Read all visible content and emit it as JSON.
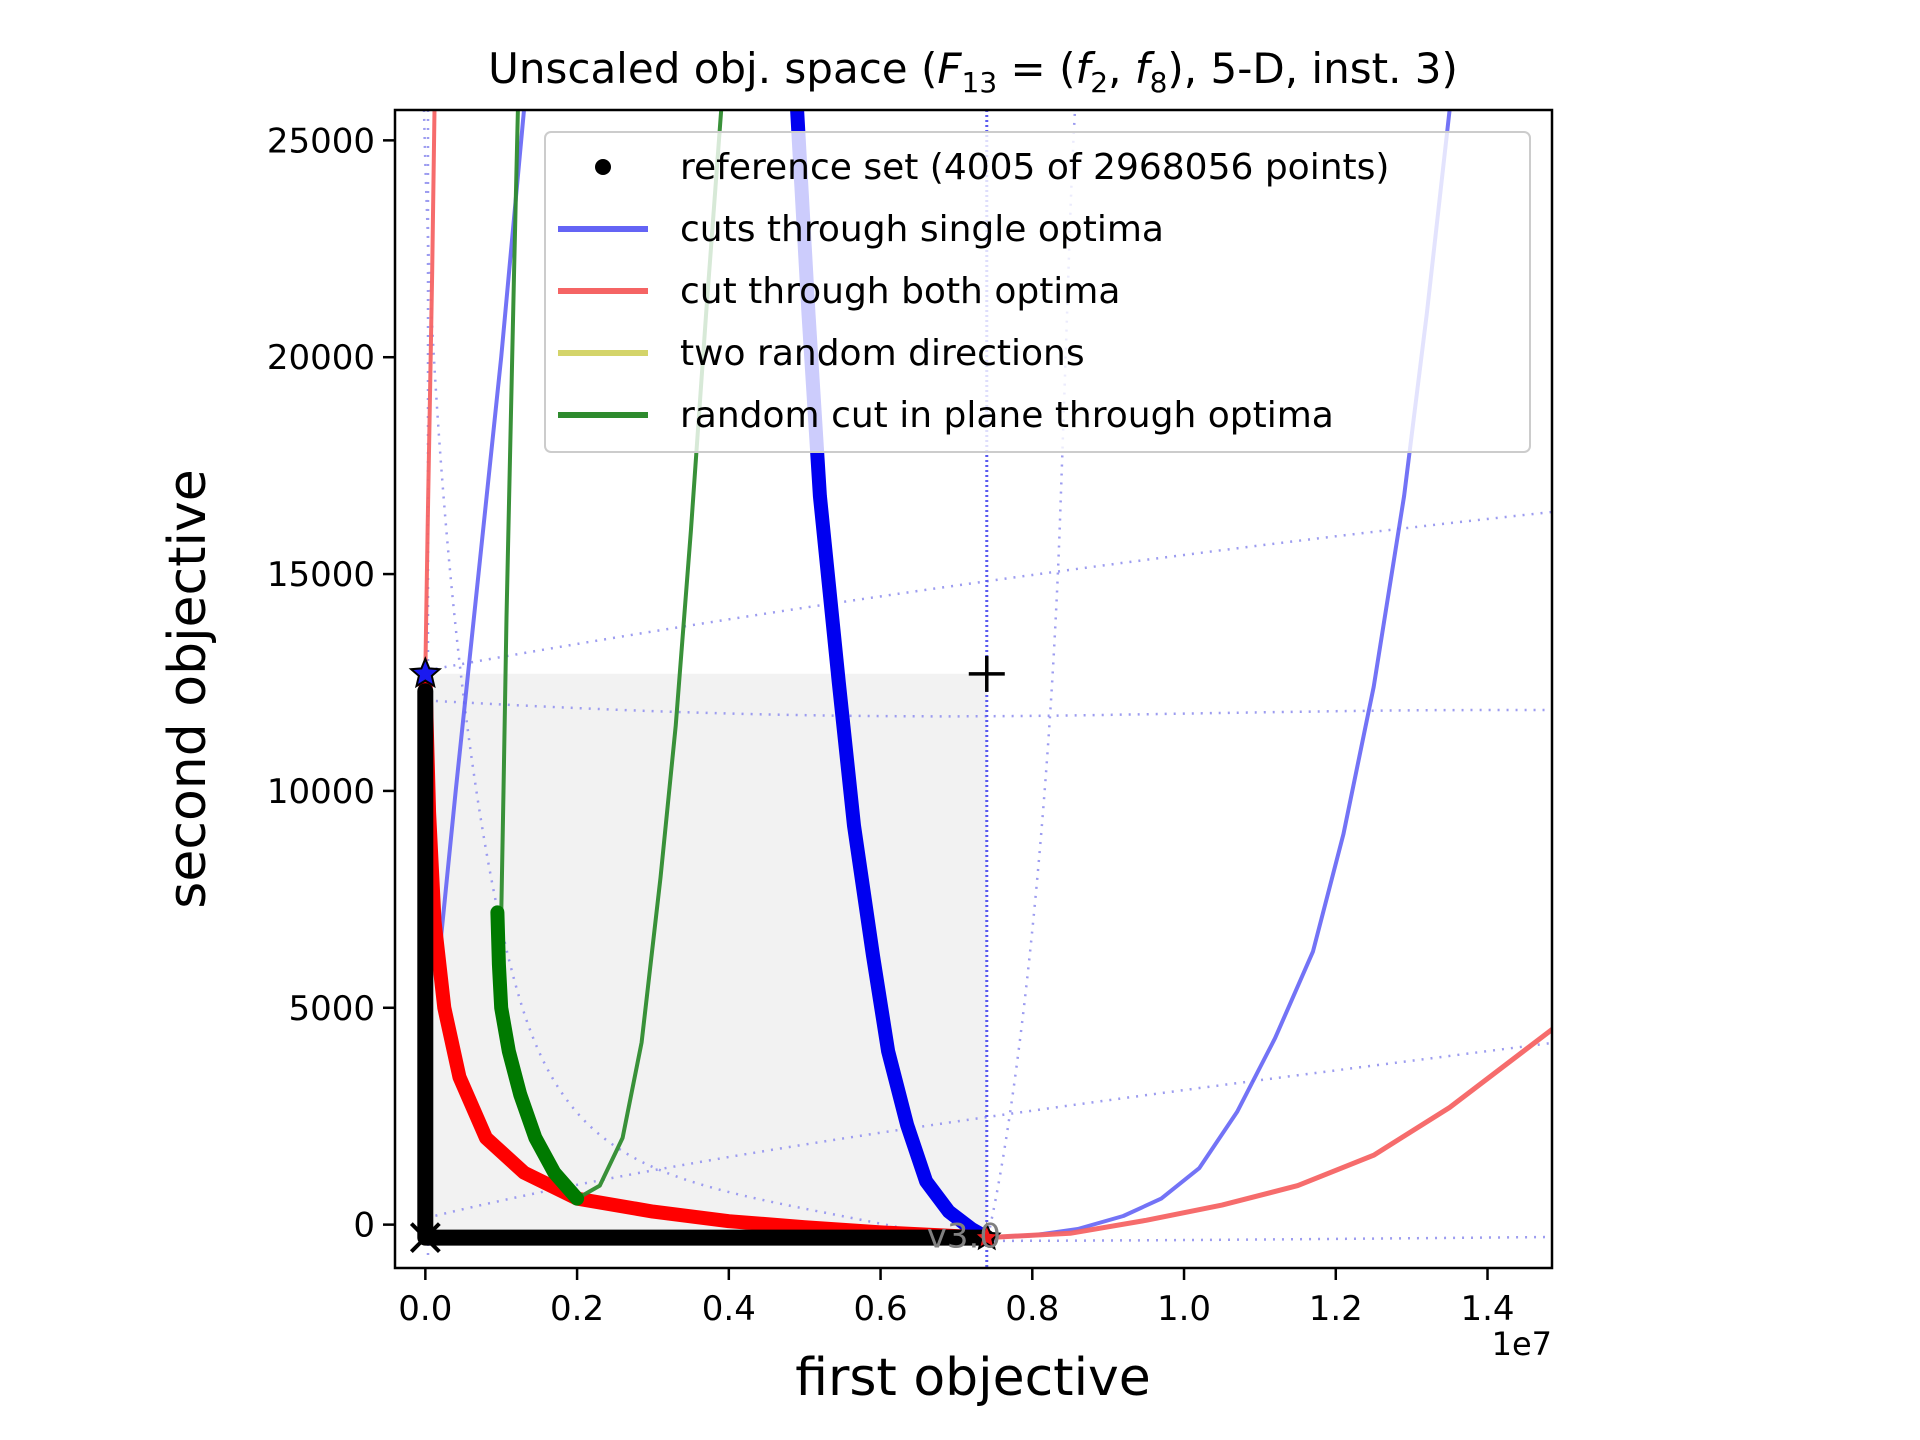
{
  "chart_data": {
    "type": "line",
    "title_pre": "Unscaled obj. space (",
    "title_func": "F",
    "title_func_sub": "13",
    "title_eq": " = (",
    "title_f2": "f",
    "title_f2_sub": "2",
    "title_comma": ", ",
    "title_f8": "f",
    "title_f8_sub": "8",
    "title_post": "), 5-D, inst. 3)",
    "xlabel": "first objective",
    "ylabel": "second objective",
    "x_offset_label": "1e7",
    "xlim": [
      -0.04,
      1.485
    ],
    "ylim": [
      -1000,
      25700
    ],
    "x_scale_note": "x values in units of 1e7",
    "xticks": [
      0.0,
      0.2,
      0.4,
      0.6,
      0.8,
      1.0,
      1.2,
      1.4
    ],
    "xtick_labels": [
      "0.0",
      "0.2",
      "0.4",
      "0.6",
      "0.8",
      "1.0",
      "1.2",
      "1.4"
    ],
    "yticks": [
      0,
      5000,
      10000,
      15000,
      20000,
      25000
    ],
    "ytick_labels": [
      "0",
      "5000",
      "10000",
      "15000",
      "20000",
      "25000"
    ],
    "grid": false,
    "legend_position": "top-right",
    "legend": [
      {
        "label": "reference set (4005 of 2968056 points)",
        "marker": "dot",
        "color": "#000000"
      },
      {
        "label": "cuts through single optima",
        "marker": "line",
        "color": "#6464f5"
      },
      {
        "label": "cut through both optima",
        "marker": "line",
        "color": "#f56464"
      },
      {
        "label": "two random directions",
        "marker": "line",
        "color": "#d4d46a"
      },
      {
        "label": "random cut in plane through optima",
        "marker": "line",
        "color": "#2e8b2e"
      }
    ],
    "annotation_label": "v3.0",
    "ideal_point": [
      0.0,
      -300
    ],
    "nadir_point": [
      0.74,
      12700
    ],
    "optimum_f1": [
      0.0,
      12700
    ],
    "optimum_f2": [
      0.74,
      -300
    ],
    "series": [
      {
        "name": "cuts through single optima",
        "color": "#6464f5",
        "opacity": 0.9,
        "width": 4,
        "points": [
          [
            0.74,
            -300
          ],
          [
            0.8,
            -250
          ],
          [
            0.86,
            -100
          ],
          [
            0.92,
            200
          ],
          [
            0.97,
            600
          ],
          [
            1.02,
            1300
          ],
          [
            1.07,
            2600
          ],
          [
            1.12,
            4300
          ],
          [
            1.17,
            6300
          ],
          [
            1.21,
            9000
          ],
          [
            1.25,
            12400
          ],
          [
            1.29,
            16800
          ],
          [
            1.32,
            21000
          ],
          [
            1.35,
            25700
          ]
        ]
      },
      {
        "name": "cuts through single optima",
        "color": "#6464f5",
        "opacity": 0.9,
        "width": 4,
        "points": [
          [
            0.02,
            6500
          ],
          [
            0.04,
            10000
          ],
          [
            0.07,
            15000
          ],
          [
            0.1,
            20000
          ],
          [
            0.13,
            25700
          ]
        ]
      },
      {
        "name": "cuts through single optima",
        "color": "#0000f0",
        "opacity": 1,
        "width": 14,
        "points": [
          [
            0.49,
            25700
          ],
          [
            0.505,
            21000
          ],
          [
            0.52,
            16800
          ],
          [
            0.545,
            12500
          ],
          [
            0.565,
            9200
          ],
          [
            0.59,
            6200
          ],
          [
            0.61,
            4000
          ],
          [
            0.635,
            2300
          ],
          [
            0.66,
            1000
          ],
          [
            0.69,
            300
          ],
          [
            0.72,
            -100
          ],
          [
            0.74,
            -300
          ]
        ]
      },
      {
        "name": "cut through both optima",
        "color": "#f56464",
        "opacity": 0.95,
        "width": 5,
        "points": [
          [
            0.74,
            -300
          ],
          [
            0.85,
            -200
          ],
          [
            0.95,
            100
          ],
          [
            1.05,
            450
          ],
          [
            1.15,
            900
          ],
          [
            1.25,
            1600
          ],
          [
            1.35,
            2700
          ],
          [
            1.485,
            4500
          ]
        ]
      },
      {
        "name": "cut through both optima",
        "color": "#f56464",
        "opacity": 0.95,
        "width": 4,
        "points": [
          [
            0.0,
            12700
          ],
          [
            0.003,
            16000
          ],
          [
            0.006,
            19000
          ],
          [
            0.009,
            22000
          ],
          [
            0.012,
            25700
          ]
        ]
      },
      {
        "name": "cut through both optima",
        "color": "#ff0000",
        "opacity": 1,
        "width": 14,
        "points": [
          [
            0.0,
            12700
          ],
          [
            0.005,
            9500
          ],
          [
            0.012,
            7000
          ],
          [
            0.025,
            5000
          ],
          [
            0.045,
            3400
          ],
          [
            0.08,
            2000
          ],
          [
            0.13,
            1200
          ],
          [
            0.2,
            600
          ],
          [
            0.3,
            300
          ],
          [
            0.4,
            80
          ],
          [
            0.5,
            -60
          ],
          [
            0.6,
            -180
          ],
          [
            0.74,
            -300
          ]
        ]
      },
      {
        "name": "random cut in plane through optima",
        "color": "#2e8b2e",
        "opacity": 0.95,
        "width": 4,
        "points": [
          [
            0.1,
            7100
          ],
          [
            0.103,
            10000
          ],
          [
            0.107,
            14000
          ],
          [
            0.112,
            18000
          ],
          [
            0.117,
            22000
          ],
          [
            0.122,
            25700
          ]
        ]
      },
      {
        "name": "random cut in plane through optima",
        "color": "#2e8b2e",
        "opacity": 0.95,
        "width": 4,
        "points": [
          [
            0.2,
            600
          ],
          [
            0.23,
            900
          ],
          [
            0.26,
            2000
          ],
          [
            0.285,
            4200
          ],
          [
            0.31,
            8000
          ],
          [
            0.33,
            11500
          ],
          [
            0.35,
            16000
          ],
          [
            0.37,
            21000
          ],
          [
            0.39,
            25700
          ]
        ]
      },
      {
        "name": "random cut in plane through optima",
        "color": "#007a00",
        "opacity": 1,
        "width": 14,
        "points": [
          [
            0.095,
            7200
          ],
          [
            0.097,
            6000
          ],
          [
            0.1,
            5000
          ],
          [
            0.11,
            4000
          ],
          [
            0.125,
            3000
          ],
          [
            0.145,
            2000
          ],
          [
            0.17,
            1200
          ],
          [
            0.2,
            600
          ]
        ]
      },
      {
        "name": "reference set (4005 of 2968056 points)",
        "color": "#000000",
        "opacity": 1,
        "width": 16,
        "points": [
          [
            0.0,
            12300
          ],
          [
            0.0,
            -300
          ],
          [
            0.74,
            -300
          ]
        ]
      }
    ]
  }
}
